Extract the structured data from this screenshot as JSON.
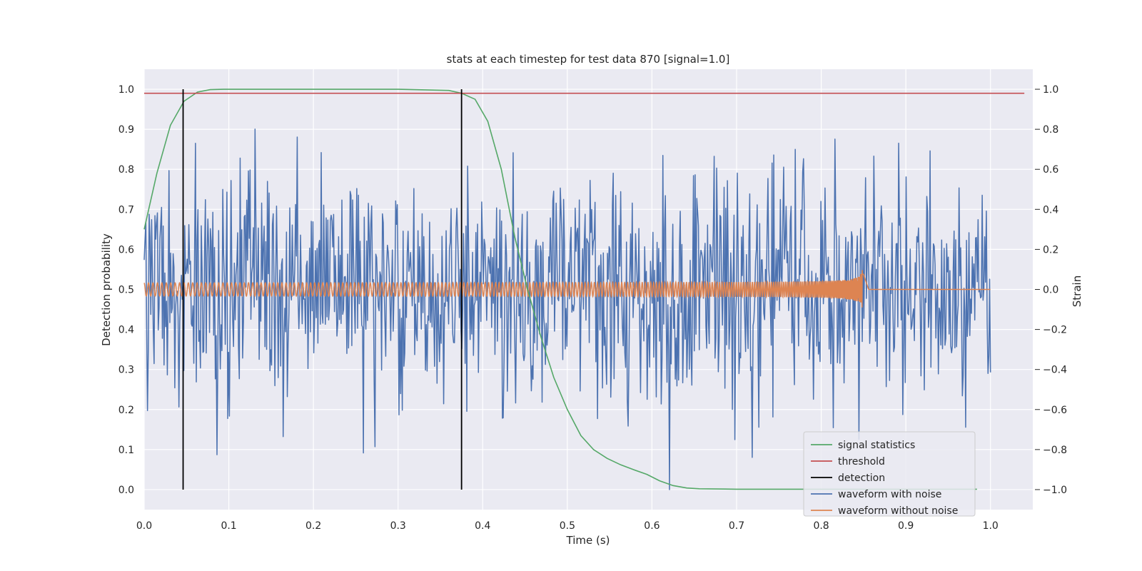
{
  "chart_data": {
    "type": "line",
    "title": "stats at each timestep for test data 870 [signal=1.0]",
    "xlabel": "Time (s)",
    "ylabel_left": "Detection probability",
    "ylabel_right": "Strain",
    "xlim": [
      0.0,
      1.05
    ],
    "ylim_left": [
      -0.05,
      1.05
    ],
    "ylim_right": [
      -1.1,
      1.1
    ],
    "x_ticks": [
      "0.0",
      "0.1",
      "0.2",
      "0.3",
      "0.4",
      "0.5",
      "0.6",
      "0.7",
      "0.8",
      "0.9",
      "1.0"
    ],
    "left_ticks": [
      "0.0",
      "0.1",
      "0.2",
      "0.3",
      "0.4",
      "0.5",
      "0.6",
      "0.7",
      "0.8",
      "0.9",
      "1.0"
    ],
    "right_ticks": [
      "−1.0",
      "−0.8",
      "−0.6",
      "−0.4",
      "−0.2",
      "0.0",
      "0.2",
      "0.4",
      "0.6",
      "0.8",
      "1.0"
    ],
    "grid": true,
    "legend_position": "lower-right",
    "colors": {
      "background": "#eaeaf2",
      "grid": "#ffffff",
      "signal_statistics": "#55a868",
      "threshold": "#c44e52",
      "detection": "#000000",
      "waveform_with_noise": "#4c72b0",
      "waveform_without_noise": "#dd8452"
    },
    "series": [
      {
        "name": "signal statistics",
        "axis": "left",
        "x": [
          0.0,
          0.015,
          0.031,
          0.047,
          0.063,
          0.078,
          0.094,
          0.11,
          0.2,
          0.3,
          0.36,
          0.375,
          0.391,
          0.406,
          0.422,
          0.438,
          0.453,
          0.469,
          0.484,
          0.5,
          0.516,
          0.531,
          0.547,
          0.563,
          0.578,
          0.594,
          0.609,
          0.625,
          0.641,
          0.656,
          0.7,
          0.8,
          0.9,
          0.984
        ],
        "y": [
          0.65,
          0.79,
          0.91,
          0.97,
          0.993,
          0.999,
          1.0,
          1.0,
          1.0,
          1.0,
          0.997,
          0.99,
          0.975,
          0.92,
          0.8,
          0.63,
          0.5,
          0.38,
          0.28,
          0.2,
          0.135,
          0.1,
          0.078,
          0.062,
          0.05,
          0.038,
          0.022,
          0.01,
          0.004,
          0.002,
          0.001,
          0.001,
          0.001,
          0.001
        ]
      },
      {
        "name": "threshold",
        "axis": "left",
        "x": [
          0.0,
          1.04
        ],
        "y": [
          0.99,
          0.99
        ]
      },
      {
        "name": "detection",
        "axis": "left",
        "type": "vlines",
        "x": [
          0.046,
          0.375
        ],
        "y_range": [
          0.0,
          1.0
        ]
      },
      {
        "name": "waveform with noise",
        "axis": "right",
        "x_range": [
          0.0,
          1.0
        ],
        "samples": 1024,
        "noise_std": 0.3,
        "y_range": [
          -1.0,
          1.0
        ]
      },
      {
        "name": "waveform without noise",
        "axis": "right",
        "x_range": [
          0.0,
          1.0
        ],
        "amplitude": 0.03,
        "peak_amplitude": 0.1,
        "merger_time": 0.85
      }
    ],
    "legend": [
      "signal statistics",
      "threshold",
      "detection",
      "waveform with noise",
      "waveform without noise"
    ]
  }
}
